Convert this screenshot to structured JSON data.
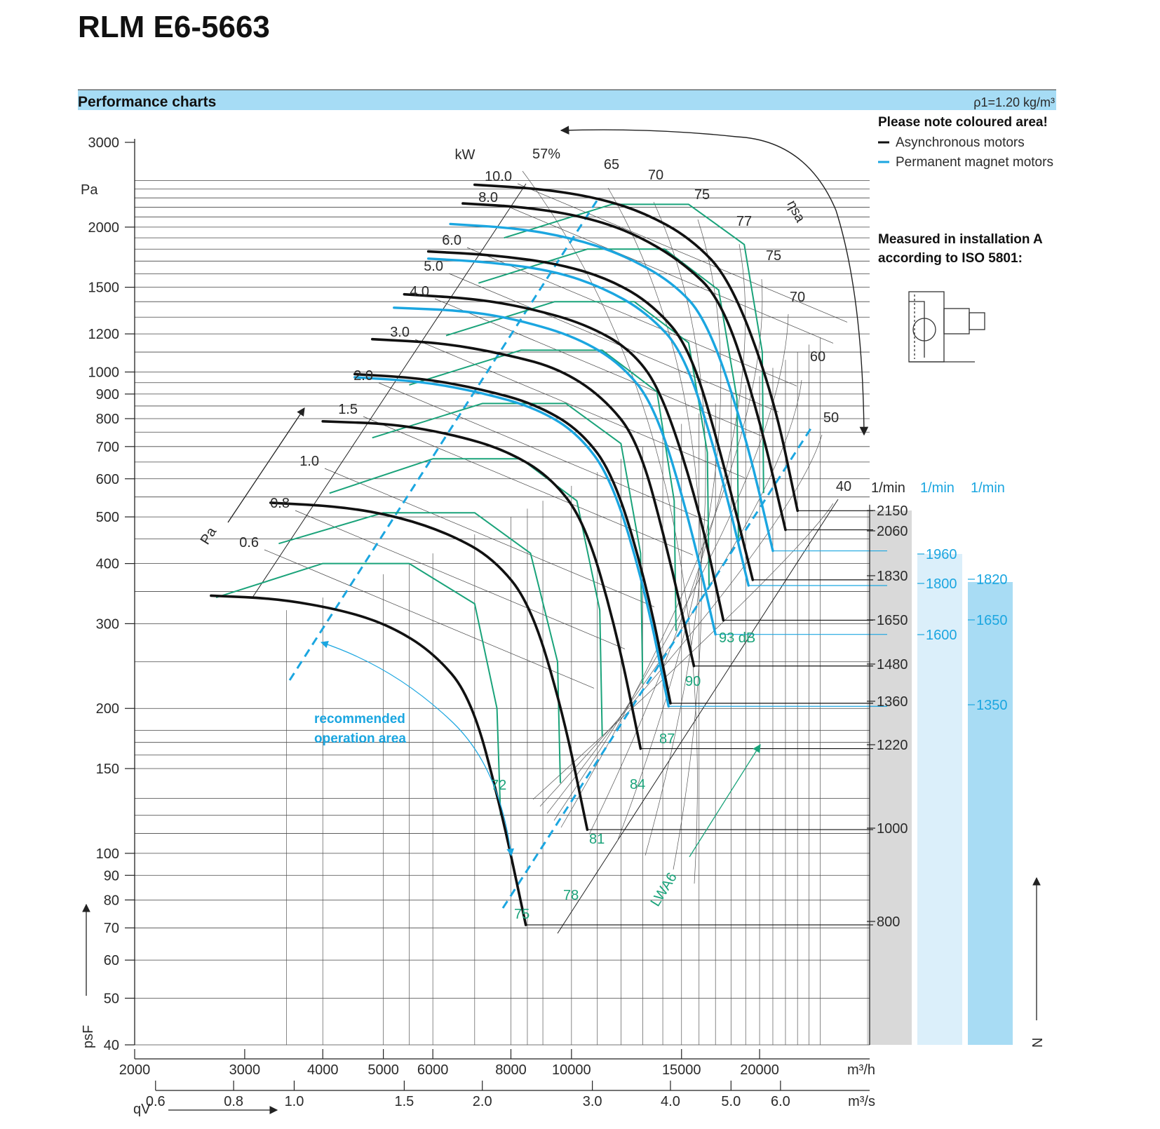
{
  "title": "RLM E6-5663",
  "section_title": "Performance charts",
  "density_label": "ρ1=1.20 kg/m³",
  "legend": {
    "heading": "Please note coloured area!",
    "items": [
      {
        "label": "Asynchronous motors",
        "color": "#111111"
      },
      {
        "label": "Permanent magnet motors",
        "color": "#1ba6e0"
      }
    ]
  },
  "installation_note": [
    "Measured in installation A",
    "according to ISO 5801:"
  ],
  "recommended_label": [
    "recommended",
    "operation area"
  ],
  "colors": {
    "header_band": "#a6dcf5",
    "async": "#111111",
    "pm": "#1ba6e0",
    "noise": "#1aa37a",
    "grey_band": "#d9d9d9",
    "light_blue_band": "#dbeffa",
    "blue_band": "#a8dcf4"
  },
  "chart_data": {
    "type": "line",
    "x_scale": "log",
    "y_scale": "log",
    "xlabel": "qV",
    "ylabel": "psF",
    "x_unit": "m³/h",
    "x2_unit": "m³/s",
    "y_unit": "Pa",
    "xlim": [
      2000,
      30000
    ],
    "ylim": [
      40,
      3200
    ],
    "x_ticks": [
      2000,
      3000,
      4000,
      5000,
      6000,
      8000,
      10000,
      15000,
      20000
    ],
    "x_tick_labels": [
      "2000",
      "3000",
      "4000",
      "5000",
      "6000",
      "8000",
      "10000",
      "15000",
      "20000"
    ],
    "x2_ticks": [
      0.6,
      0.8,
      1.0,
      1.5,
      2.0,
      3.0,
      4.0,
      5.0,
      6.0
    ],
    "x2_tick_labels": [
      "0.6",
      "0.8",
      "1.0",
      "1.5",
      "2.0",
      "3.0",
      "4.0",
      "5.0",
      "6.0"
    ],
    "y_ticks": [
      40,
      50,
      60,
      70,
      80,
      90,
      100,
      150,
      200,
      300,
      400,
      500,
      600,
      700,
      800,
      900,
      1000,
      1200,
      1500,
      2000,
      3000
    ],
    "y_tick_labels": [
      "40",
      "50",
      "60",
      "70",
      "80",
      "90",
      "100",
      "150",
      "200",
      "300",
      "400",
      "500",
      "600",
      "700",
      "800",
      "900",
      "1000",
      "1200",
      "1500",
      "2000",
      "3000"
    ],
    "power_unit": "kW",
    "power_labels": [
      "10.0",
      "8.0",
      "6.0",
      "5.0",
      "4.0",
      "3.0",
      "2.0",
      "1.5",
      "1.0",
      "0.8",
      "0.6"
    ],
    "efficiency_label": "ηsa",
    "efficiency_labels": [
      "57%",
      "65",
      "70",
      "75",
      "77",
      "75",
      "70",
      "60",
      "50",
      "40"
    ],
    "noise_label": "LWA6",
    "noise_values": [
      "72",
      "75",
      "78",
      "81",
      "84",
      "87",
      "90",
      "93 dB"
    ],
    "speed_unit": "1/min",
    "speed_async": [
      2150,
      2060,
      1830,
      1650,
      1480,
      1360,
      1220,
      1000,
      800
    ],
    "speed_pm_col1": [
      1960,
      1800,
      1600
    ],
    "speed_pm_col2": [
      1820,
      1650,
      1350
    ],
    "series": [
      {
        "name": "2150",
        "motor": "async",
        "x": [
          7000,
          9000,
          11000,
          13000,
          15500,
          18000,
          21000,
          23000
        ],
        "y": [
          2450,
          2400,
          2300,
          2150,
          1900,
          1550,
          900,
          515
        ]
      },
      {
        "name": "2060",
        "motor": "async",
        "x": [
          6700,
          8500,
          10500,
          12500,
          15000,
          17500,
          20000,
          22000
        ],
        "y": [
          2240,
          2200,
          2100,
          1950,
          1700,
          1400,
          800,
          470
        ]
      },
      {
        "name": "1960",
        "motor": "pm",
        "x": [
          6400,
          8200,
          10000,
          12000,
          14500,
          16500,
          19000,
          21000
        ],
        "y": [
          2030,
          1990,
          1900,
          1760,
          1540,
          1280,
          740,
          425
        ]
      },
      {
        "name": "1830",
        "motor": "async",
        "x": [
          5900,
          7500,
          9500,
          11500,
          13500,
          15500,
          17500,
          19500
        ],
        "y": [
          1780,
          1750,
          1680,
          1560,
          1380,
          1120,
          650,
          370
        ]
      },
      {
        "name": "1800",
        "motor": "pm",
        "x": [
          5900,
          7500,
          9400,
          11200,
          13200,
          15200,
          17300,
          19200
        ],
        "y": [
          1720,
          1690,
          1620,
          1500,
          1330,
          1090,
          630,
          360
        ]
      },
      {
        "name": "1650",
        "motor": "async",
        "x": [
          5400,
          7000,
          8500,
          10500,
          12500,
          14000,
          16000,
          17500
        ],
        "y": [
          1450,
          1420,
          1360,
          1260,
          1110,
          900,
          520,
          305
        ]
      },
      {
        "name": "1600",
        "motor": "pm",
        "x": [
          5200,
          6800,
          8300,
          10200,
          12000,
          13600,
          15400,
          17000
        ],
        "y": [
          1360,
          1340,
          1280,
          1180,
          1040,
          850,
          500,
          285
        ]
      },
      {
        "name": "1480",
        "motor": "async",
        "x": [
          4800,
          6200,
          7800,
          9500,
          11200,
          12800,
          14300,
          15700
        ],
        "y": [
          1170,
          1150,
          1090,
          1020,
          890,
          720,
          420,
          245
        ]
      },
      {
        "name": "1360",
        "motor": "async",
        "x": [
          4500,
          5800,
          7200,
          8700,
          10300,
          11700,
          13200,
          14400
        ],
        "y": [
          990,
          970,
          920,
          860,
          760,
          610,
          360,
          205
        ]
      },
      {
        "name": "1350",
        "motor": "pm",
        "x": [
          4500,
          5800,
          7200,
          8700,
          10200,
          11600,
          13100,
          14300
        ],
        "y": [
          975,
          955,
          905,
          845,
          750,
          600,
          355,
          202
        ]
      },
      {
        "name": "1220",
        "motor": "async",
        "x": [
          4000,
          5200,
          6500,
          7800,
          9200,
          10500,
          11800,
          12900
        ],
        "y": [
          790,
          780,
          740,
          690,
          610,
          490,
          290,
          165
        ]
      },
      {
        "name": "1000",
        "motor": "async",
        "x": [
          3300,
          4300,
          5300,
          6400,
          7500,
          8600,
          9700,
          10600
        ],
        "y": [
          535,
          525,
          500,
          460,
          410,
          330,
          195,
          112
        ]
      },
      {
        "name": "800",
        "motor": "async",
        "x": [
          2650,
          3400,
          4300,
          5100,
          6000,
          6900,
          7700,
          8450
        ],
        "y": [
          343,
          338,
          320,
          298,
          262,
          212,
          125,
          71
        ]
      }
    ]
  }
}
